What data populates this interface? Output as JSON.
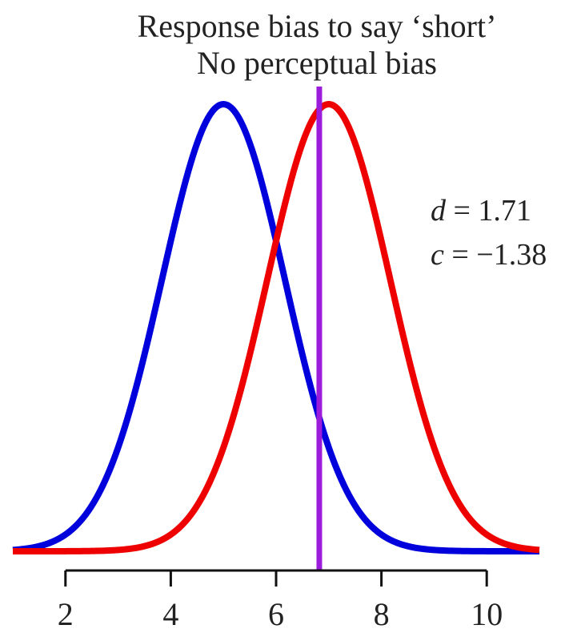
{
  "chart_data": {
    "type": "line",
    "title_line1": "Response bias to say ‘short’",
    "title_line2": "No perceptual bias",
    "xlabel": "",
    "ylabel": "",
    "xlim": [
      1,
      11
    ],
    "x_ticks": [
      2,
      4,
      6,
      8,
      10
    ],
    "x_tick_labels": [
      "2",
      "4",
      "6",
      "8",
      "10"
    ],
    "grid": false,
    "series": [
      {
        "color": "#0000dd",
        "distribution": "normal",
        "mean": 5.0,
        "sd": 1.17
      },
      {
        "color": "#ee0000",
        "distribution": "normal",
        "mean": 7.0,
        "sd": 1.17
      }
    ],
    "criterion": {
      "x": 6.82,
      "color": "#9b1ddb"
    },
    "annotations": {
      "d_var": "d",
      "d_text": " = 1.71",
      "c_var": "c",
      "c_text": " = −1.38"
    }
  }
}
